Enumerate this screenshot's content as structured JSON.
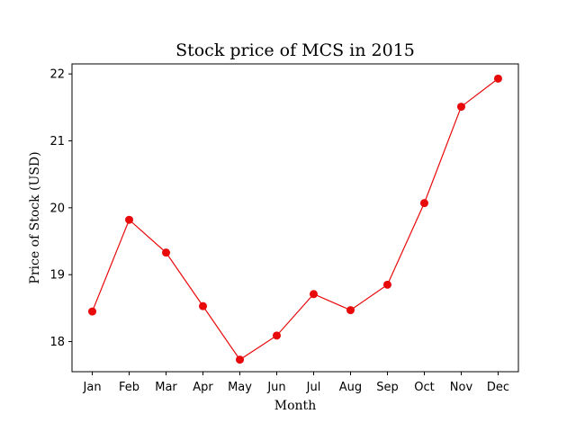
{
  "chart_data": {
    "type": "line",
    "title": "Stock price of MCS in 2015",
    "xlabel": "Month",
    "ylabel": "Price of Stock (USD)",
    "categories": [
      "Jan",
      "Feb",
      "Mar",
      "Apr",
      "May",
      "Jun",
      "Jul",
      "Aug",
      "Sep",
      "Oct",
      "Nov",
      "Dec"
    ],
    "series": [
      {
        "values": [
          18.45,
          19.82,
          19.33,
          18.53,
          17.73,
          18.09,
          18.71,
          18.47,
          18.85,
          20.07,
          21.51,
          21.93
        ],
        "color": "#e8090b",
        "marker": "circle"
      }
    ],
    "ylim": [
      17.55,
      22.15
    ],
    "yticks": [
      18,
      19,
      20,
      21,
      22
    ],
    "grid": false
  }
}
